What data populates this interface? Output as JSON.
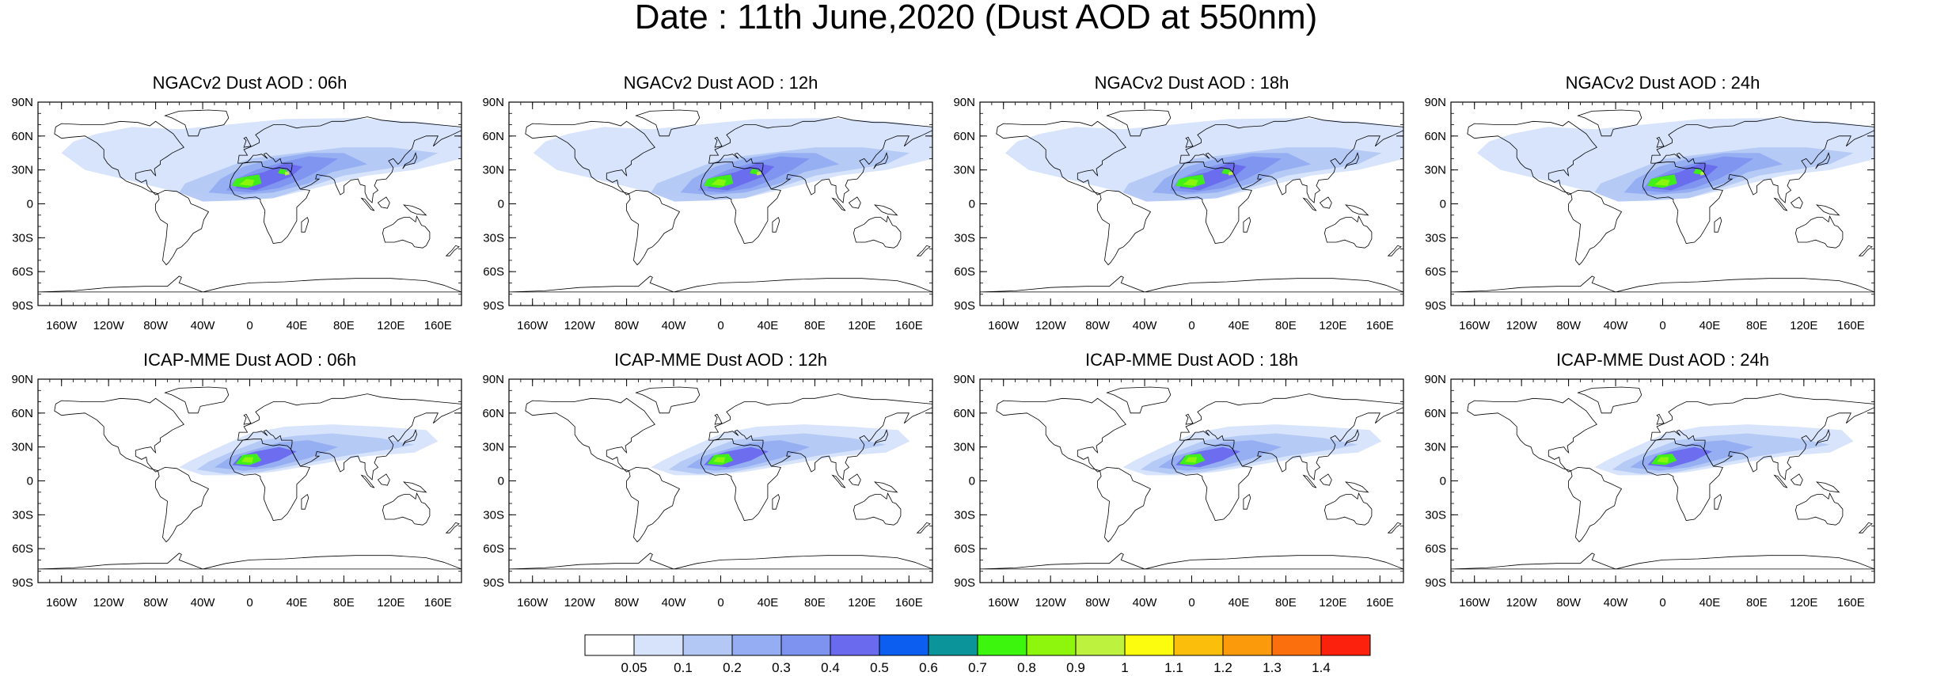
{
  "title": "Date : 11th June,2020 (Dust AOD at 550nm)",
  "panels": [
    {
      "title": "NGACv2 Dust AOD : 06h",
      "model": "NGACv2",
      "lead": "06h"
    },
    {
      "title": "NGACv2 Dust AOD : 12h",
      "model": "NGACv2",
      "lead": "12h"
    },
    {
      "title": "NGACv2 Dust AOD : 18h",
      "model": "NGACv2",
      "lead": "18h"
    },
    {
      "title": "NGACv2 Dust AOD : 24h",
      "model": "NGACv2",
      "lead": "24h"
    },
    {
      "title": "ICAP-MME Dust AOD : 06h",
      "model": "ICAP-MME",
      "lead": "06h"
    },
    {
      "title": "ICAP-MME Dust AOD : 12h",
      "model": "ICAP-MME",
      "lead": "12h"
    },
    {
      "title": "ICAP-MME Dust AOD : 18h",
      "model": "ICAP-MME",
      "lead": "18h"
    },
    {
      "title": "ICAP-MME Dust AOD : 24h",
      "model": "ICAP-MME",
      "lead": "24h"
    }
  ],
  "lat_ticks": [
    "90N",
    "60N",
    "30N",
    "0",
    "30S",
    "60S",
    "90S"
  ],
  "lon_ticks": [
    "160W",
    "120W",
    "80W",
    "40W",
    "0",
    "40E",
    "80E",
    "120E",
    "160E"
  ],
  "colorbar": {
    "levels": [
      "0.05",
      "0.1",
      "0.2",
      "0.3",
      "0.4",
      "0.5",
      "0.6",
      "0.7",
      "0.8",
      "0.9",
      "1",
      "1.1",
      "1.2",
      "1.3",
      "1.4"
    ],
    "colors": [
      "#ffffff",
      "#d6e3fb",
      "#b4c8f5",
      "#95adf2",
      "#7d93ef",
      "#6a6aee",
      "#0b5ef0",
      "#0b9499",
      "#3df60d",
      "#8ef60c",
      "#bdf33e",
      "#fcfc0e",
      "#fbbf0b",
      "#fb9a0b",
      "#fb700c",
      "#fb210d"
    ]
  }
}
